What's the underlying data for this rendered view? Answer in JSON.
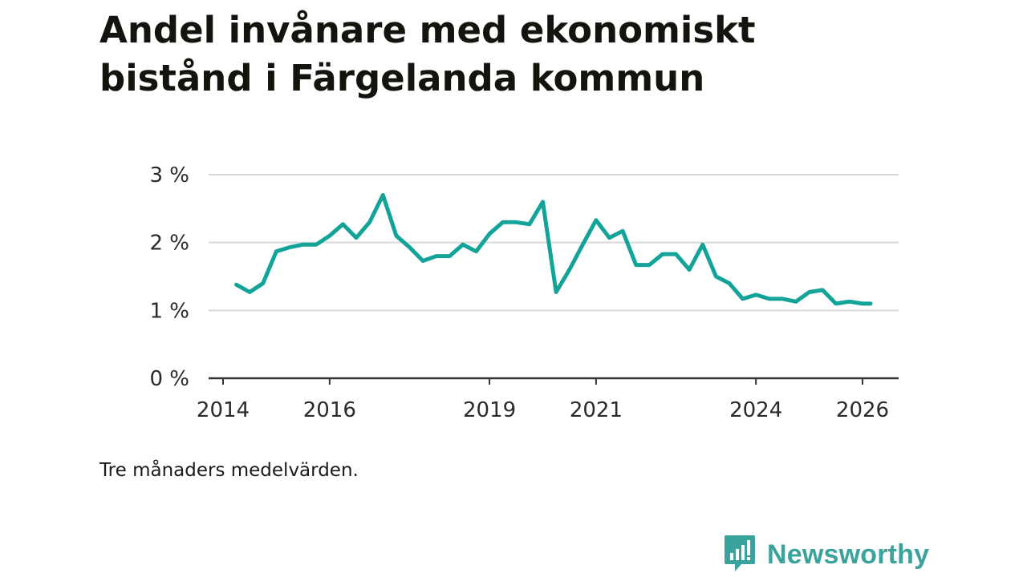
{
  "title": "Andel invånare med ekonomiskt bistånd i Färgelanda kommun",
  "note": "Tre månaders medelvärden.",
  "brand": {
    "name": "Newsworthy",
    "icon": "newsworthy-logo-icon",
    "color": "#3aa39b"
  },
  "colors": {
    "line": "#13a398",
    "grid": "#d9d9d9",
    "axis": "#333333"
  },
  "chart_data": {
    "type": "line",
    "title": "Andel invånare med ekonomiskt bistånd i Färgelanda kommun",
    "xlabel": "",
    "ylabel": "",
    "xlim": [
      2014,
      2026.5
    ],
    "ylim": [
      0,
      3
    ],
    "y_ticks": [
      0,
      1,
      2,
      3
    ],
    "y_tick_labels": [
      "0 %",
      "1 %",
      "2 %",
      "3 %"
    ],
    "x_ticks": [
      2014,
      2016,
      2019,
      2021,
      2024,
      2026
    ],
    "x_tick_labels": [
      "2014",
      "2016",
      "2019",
      "2021",
      "2024",
      "2026"
    ],
    "grid": true,
    "series": [
      {
        "name": "Andel invånare med ekonomiskt bistånd",
        "x": [
          2014.25,
          2014.5,
          2014.75,
          2015.0,
          2015.25,
          2015.5,
          2015.75,
          2016.0,
          2016.25,
          2016.5,
          2016.75,
          2017.0,
          2017.25,
          2017.5,
          2017.75,
          2018.0,
          2018.25,
          2018.5,
          2018.75,
          2019.0,
          2019.25,
          2019.5,
          2019.75,
          2020.0,
          2020.25,
          2020.5,
          2020.75,
          2021.0,
          2021.25,
          2021.5,
          2021.75,
          2022.0,
          2022.25,
          2022.5,
          2022.75,
          2023.0,
          2023.25,
          2023.5,
          2023.75,
          2024.0,
          2024.25,
          2024.5,
          2024.75,
          2025.0,
          2025.25,
          2025.5,
          2025.75,
          2026.0,
          2026.15
        ],
        "values": [
          1.38,
          1.27,
          1.4,
          1.87,
          1.93,
          1.97,
          1.97,
          2.1,
          2.27,
          2.07,
          2.3,
          2.7,
          2.1,
          1.93,
          1.73,
          1.8,
          1.8,
          1.97,
          1.87,
          2.13,
          2.3,
          2.3,
          2.27,
          2.6,
          1.27,
          1.6,
          1.97,
          2.33,
          2.07,
          2.17,
          1.67,
          1.67,
          1.83,
          1.83,
          1.6,
          1.97,
          1.5,
          1.4,
          1.17,
          1.23,
          1.17,
          1.17,
          1.13,
          1.27,
          1.3,
          1.1,
          1.13,
          1.1,
          1.1
        ]
      }
    ]
  }
}
